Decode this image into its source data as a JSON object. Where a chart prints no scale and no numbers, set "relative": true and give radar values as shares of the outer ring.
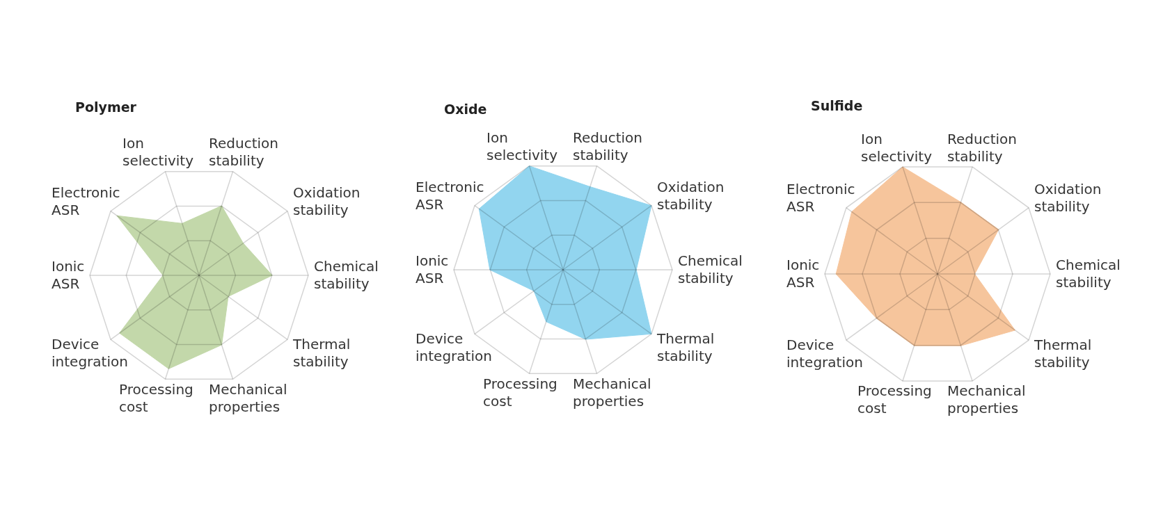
{
  "chart_data": [
    {
      "type": "radar",
      "title": "Polymer",
      "categories": [
        "Reduction stability",
        "Oxidation stability",
        "Chemical stability",
        "Thermal stability",
        "Mechanical properties",
        "Processing cost",
        "Device integration",
        "Ionic ASR",
        "Electronic ASR",
        "Ion selectivity"
      ],
      "relative": true,
      "grid": true,
      "series": [
        {
          "color": "#c3d8aa",
          "values": [
            0.67,
            0.5,
            0.67,
            0.33,
            0.67,
            0.9,
            0.9,
            0.33,
            0.93,
            0.5
          ]
        }
      ]
    },
    {
      "type": "radar",
      "title": "Oxide",
      "categories": [
        "Reduction stability",
        "Oxidation stability",
        "Chemical stability",
        "Thermal stability",
        "Mechanical properties",
        "Processing cost",
        "Device integration",
        "Ionic ASR",
        "Electronic ASR",
        "Ion selectivity"
      ],
      "relative": true,
      "grid": true,
      "series": [
        {
          "color": "#92d5ef",
          "values": [
            0.8,
            1,
            0.67,
            1,
            0.67,
            0.5,
            0.33,
            0.67,
            0.95,
            1
          ]
        }
      ]
    },
    {
      "type": "radar",
      "title": "Sulfide",
      "categories": [
        "Reduction stability",
        "Oxidation stability",
        "Chemical stability",
        "Thermal stability",
        "Mechanical properties",
        "Processing cost",
        "Device integration",
        "Ionic ASR",
        "Electronic ASR",
        "Ion selectivity"
      ],
      "relative": true,
      "grid": true,
      "series": [
        {
          "color": "#f6c59c",
          "values": [
            0.67,
            0.67,
            0.33,
            0.85,
            0.67,
            0.67,
            0.67,
            0.9,
            0.94,
            1
          ]
        }
      ]
    }
  ]
}
